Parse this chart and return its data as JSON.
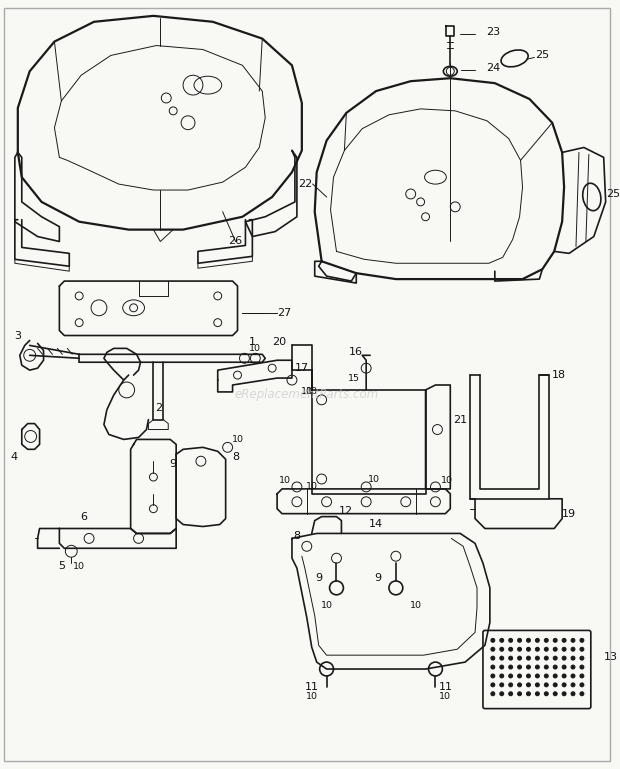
{
  "bg_color": "#f8f8f5",
  "line_color": "#1a1a1a",
  "text_color": "#111111",
  "watermark": "eReplacementParts.com",
  "watermark_color": "#c8c8c8",
  "fig_width": 6.2,
  "fig_height": 7.69,
  "dpi": 100,
  "border_color": "#aaaaaa",
  "lw_main": 1.2,
  "lw_thin": 0.7,
  "lw_thick": 1.6,
  "label_fontsize": 8.0,
  "label_fontsize_sm": 6.8
}
